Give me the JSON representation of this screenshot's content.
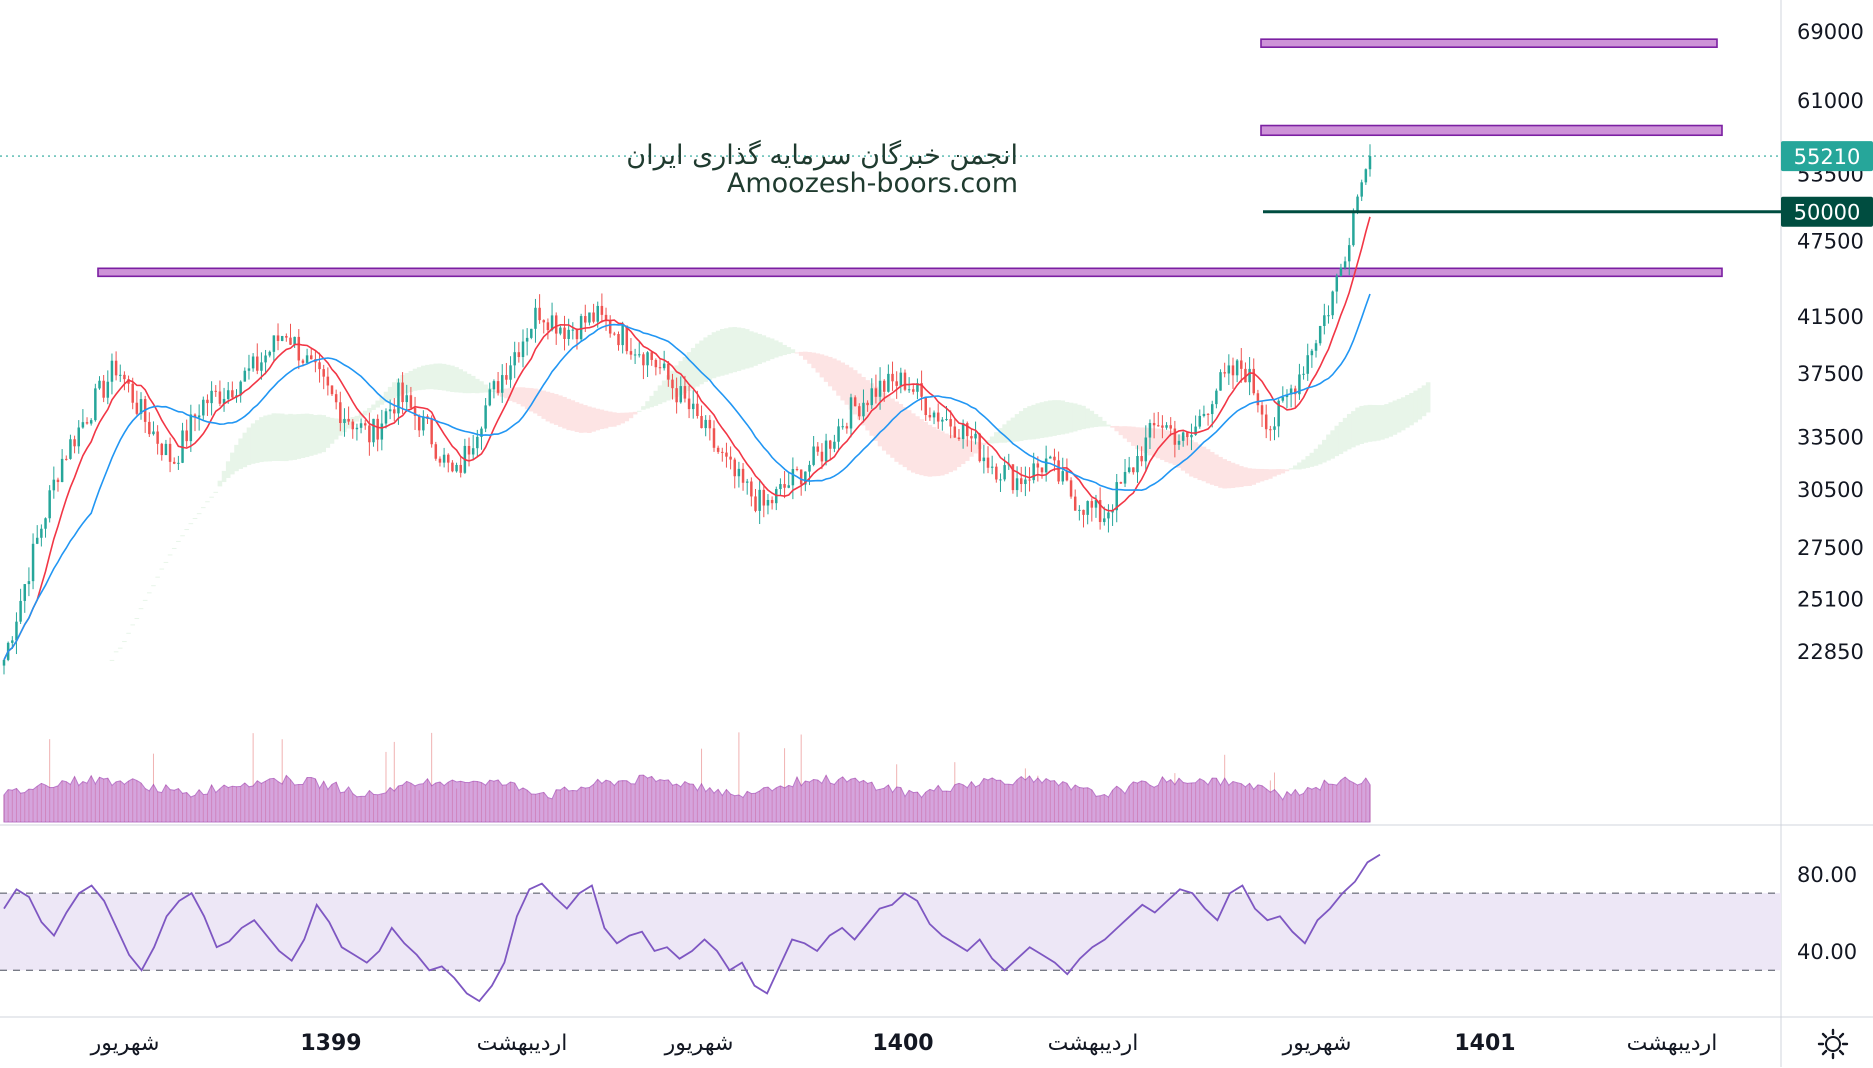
{
  "watermark": {
    "line1": "انجمن خبرگان سرمایه گذاری ایران",
    "line2": "Amoozesh-boors.com"
  },
  "colors": {
    "up": "#26a69a",
    "down": "#ef5350",
    "ema_fast": "#f23645",
    "ema_slow": "#2196f3",
    "zone_fill": "#ce93d8",
    "zone_stroke": "#7b1fa2",
    "level_line": "#004d40",
    "rsi_line": "#7e57c2",
    "rsi_band": "#ede7f6",
    "volume": "#ba68c8",
    "last_price_badge": "#26a69a"
  },
  "chart_data": {
    "type": "candlestick",
    "price_axis": {
      "ticks": [
        "69000",
        "61000",
        "53500",
        "47500",
        "41500",
        "37500",
        "33500",
        "30500",
        "27500",
        "25100",
        "22850"
      ],
      "scale": "log"
    },
    "time_axis": {
      "labels": [
        "شهریور",
        "1399",
        "اردیبهشت",
        "شهریور",
        "1400",
        "اردیبهشت",
        "شهریور",
        "1401",
        "اردیبهشت"
      ],
      "bold": [
        false,
        true,
        false,
        false,
        true,
        false,
        false,
        true,
        false
      ]
    },
    "last_price": "55210",
    "horizontal_level": "50000",
    "resistance_zones": [
      {
        "low": 44600,
        "high": 45200
      },
      {
        "low": 57300,
        "high": 58300
      },
      {
        "low": 67200,
        "high": 68000
      }
    ],
    "anchors": [
      {
        "t": 0,
        "p": 22500
      },
      {
        "t": 4,
        "p": 27000
      },
      {
        "t": 8,
        "p": 32000
      },
      {
        "t": 12,
        "p": 35000
      },
      {
        "t": 16,
        "p": 38000
      },
      {
        "t": 20,
        "p": 34500
      },
      {
        "t": 24,
        "p": 32000
      },
      {
        "t": 28,
        "p": 35500
      },
      {
        "t": 32,
        "p": 36500
      },
      {
        "t": 36,
        "p": 38000
      },
      {
        "t": 40,
        "p": 40500
      },
      {
        "t": 44,
        "p": 37500
      },
      {
        "t": 48,
        "p": 35000
      },
      {
        "t": 52,
        "p": 33500
      },
      {
        "t": 56,
        "p": 36000
      },
      {
        "t": 60,
        "p": 34000
      },
      {
        "t": 64,
        "p": 31000
      },
      {
        "t": 68,
        "p": 35000
      },
      {
        "t": 72,
        "p": 38500
      },
      {
        "t": 76,
        "p": 42000
      },
      {
        "t": 80,
        "p": 40500
      },
      {
        "t": 84,
        "p": 41500
      },
      {
        "t": 88,
        "p": 40000
      },
      {
        "t": 92,
        "p": 38500
      },
      {
        "t": 96,
        "p": 36000
      },
      {
        "t": 100,
        "p": 33500
      },
      {
        "t": 104,
        "p": 31000
      },
      {
        "t": 108,
        "p": 29500
      },
      {
        "t": 112,
        "p": 31000
      },
      {
        "t": 116,
        "p": 32500
      },
      {
        "t": 120,
        "p": 35000
      },
      {
        "t": 124,
        "p": 36500
      },
      {
        "t": 128,
        "p": 37000
      },
      {
        "t": 132,
        "p": 35000
      },
      {
        "t": 136,
        "p": 34000
      },
      {
        "t": 140,
        "p": 32000
      },
      {
        "t": 144,
        "p": 31000
      },
      {
        "t": 148,
        "p": 32000
      },
      {
        "t": 152,
        "p": 30000
      },
      {
        "t": 156,
        "p": 29000
      },
      {
        "t": 160,
        "p": 31500
      },
      {
        "t": 164,
        "p": 34500
      },
      {
        "t": 168,
        "p": 33000
      },
      {
        "t": 172,
        "p": 36500
      },
      {
        "t": 176,
        "p": 38000
      },
      {
        "t": 180,
        "p": 34000
      },
      {
        "t": 184,
        "p": 37500
      },
      {
        "t": 188,
        "p": 42000
      },
      {
        "t": 190,
        "p": 45500
      },
      {
        "t": 192,
        "p": 51000
      },
      {
        "t": 194,
        "p": 55210
      }
    ],
    "rsi": {
      "levels": [
        "80.00",
        "40.00"
      ],
      "upper_band": 70,
      "lower_band": 30,
      "range": [
        12,
        95
      ],
      "values": [
        62,
        72,
        68,
        55,
        48,
        60,
        70,
        74,
        66,
        52,
        38,
        30,
        42,
        58,
        66,
        70,
        58,
        42,
        45,
        52,
        56,
        48,
        40,
        35,
        46,
        64,
        55,
        42,
        38,
        34,
        40,
        52,
        44,
        38,
        30,
        32,
        26,
        18,
        14,
        22,
        34,
        58,
        72,
        75,
        68,
        62,
        70,
        74,
        52,
        44,
        48,
        50,
        40,
        42,
        36,
        40,
        46,
        40,
        30,
        34,
        22,
        18,
        32,
        46,
        44,
        40,
        48,
        52,
        46,
        54,
        62,
        64,
        70,
        66,
        54,
        48,
        44,
        40,
        46,
        36,
        30,
        36,
        42,
        38,
        34,
        28,
        36,
        42,
        46,
        52,
        58,
        64,
        60,
        66,
        72,
        70,
        62,
        56,
        70,
        74,
        62,
        56,
        58,
        50,
        44,
        56,
        62,
        70,
        76,
        86,
        90
      ]
    }
  }
}
